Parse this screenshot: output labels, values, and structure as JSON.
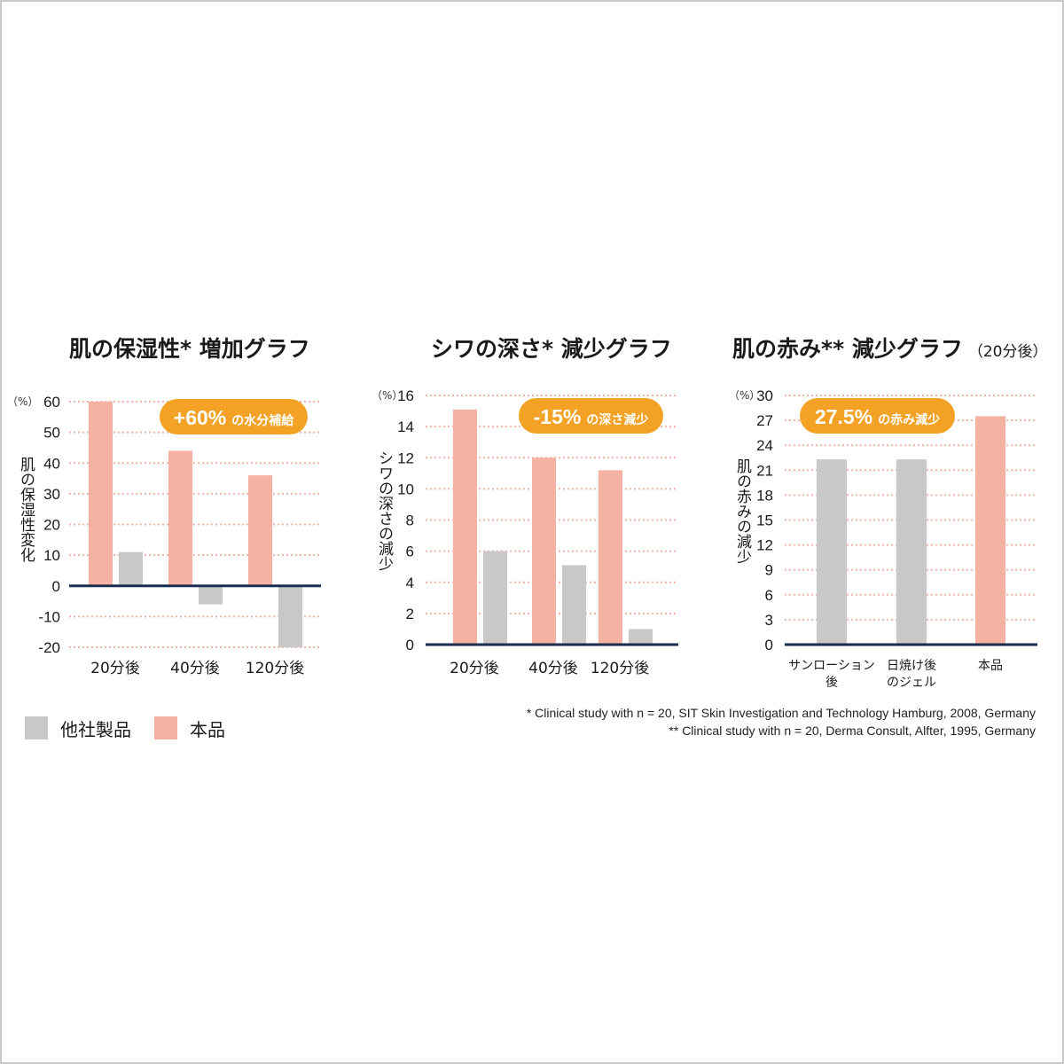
{
  "colors": {
    "product": "#f5b1a2",
    "other": "#c8c8c8",
    "badge": "#f4a225",
    "grid": "#f2b4a6",
    "axis": "#1a2e50"
  },
  "legend": {
    "other_label": "他社製品",
    "product_label": "本品"
  },
  "notes": [
    "* Clinical study with n = 20, SIT Skin Investigation and Technology Hamburg, 2008, Germany",
    "** Clinical study with n = 20, Derma Consult, Alfter, 1995, Germany"
  ],
  "chart_data": [
    {
      "type": "bar",
      "title": "肌の保湿性* 増加グラフ",
      "subtitle": "",
      "unit": "（%）",
      "ylabel": "肌の保湿性変化",
      "ylim": [
        -20,
        60
      ],
      "yticks": [
        60,
        50,
        40,
        30,
        20,
        10,
        0,
        -10,
        -20
      ],
      "categories": [
        "20分後",
        "40分後",
        "120分後"
      ],
      "series": [
        {
          "name": "本品",
          "values": [
            60,
            44,
            36
          ]
        },
        {
          "name": "他社製品",
          "values": [
            11,
            -6,
            -20
          ]
        }
      ],
      "badge": {
        "big": "+60%",
        "small": "の水分補給"
      }
    },
    {
      "type": "bar",
      "title": "シワの深さ* 減少グラフ",
      "subtitle": "",
      "unit": "（%）",
      "ylabel": "シワの深さの減少",
      "ylim": [
        0,
        16
      ],
      "yticks": [
        16,
        14,
        12,
        10,
        8,
        6,
        4,
        2,
        0
      ],
      "categories": [
        "20分後",
        "40分後",
        "120分後"
      ],
      "series": [
        {
          "name": "本品",
          "values": [
            15.1,
            12,
            11.2
          ]
        },
        {
          "name": "他社製品",
          "values": [
            6,
            5.1,
            1
          ]
        }
      ],
      "badge": {
        "big": "-15%",
        "small": "の深さ減少"
      }
    },
    {
      "type": "bar",
      "title": "肌の赤み** 減少グラフ",
      "subtitle": "（20分後）",
      "unit": "（%）",
      "ylabel": "肌の赤みの減少",
      "ylim": [
        0,
        30
      ],
      "yticks": [
        30,
        27,
        24,
        21,
        18,
        15,
        12,
        9,
        6,
        3,
        0
      ],
      "categories": [
        [
          "サンローション",
          "後"
        ],
        [
          "日焼け後",
          "のジェル"
        ],
        [
          "本品"
        ]
      ],
      "values": [
        22.3,
        22.3,
        27.5
      ],
      "bar_series": [
        "他社製品",
        "他社製品",
        "本品"
      ],
      "badge": {
        "big": "27.5%",
        "small": "の赤み減少"
      }
    }
  ]
}
